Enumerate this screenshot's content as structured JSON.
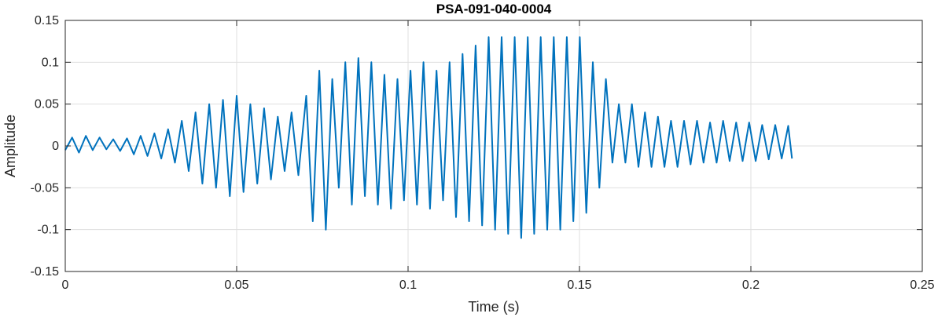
{
  "chart_data": {
    "type": "line",
    "title": "PSA-091-040-0004",
    "xlabel": "Time (s)",
    "ylabel": "Amplitude",
    "xlim": [
      0,
      0.25
    ],
    "ylim": [
      -0.15,
      0.15
    ],
    "xticks": [
      0,
      0.05,
      0.1,
      0.15,
      0.2,
      0.25
    ],
    "xtick_labels": [
      "0",
      "0.05",
      "0.1",
      "0.15",
      "0.2",
      "0.25"
    ],
    "yticks": [
      -0.15,
      -0.1,
      -0.05,
      0,
      0.05,
      0.1,
      0.15
    ],
    "ytick_labels": [
      "-0.15",
      "-0.1",
      "-0.05",
      "0",
      "0.05",
      "0.1",
      "0.15"
    ],
    "grid": true,
    "line_color": "#0072BD",
    "series": [
      {
        "x": [
          0,
          0.002,
          0.004,
          0.006,
          0.008,
          0.01,
          0.012,
          0.014,
          0.016,
          0.018,
          0.02,
          0.022,
          0.024,
          0.026,
          0.028,
          0.03,
          0.032,
          0.034,
          0.036,
          0.038,
          0.04,
          0.042,
          0.044,
          0.046,
          0.048,
          0.05,
          0.052,
          0.054,
          0.056,
          0.058,
          0.06,
          0.062,
          0.064,
          0.066,
          0.068,
          0.0703,
          0.0722,
          0.0741,
          0.076,
          0.0779,
          0.0798,
          0.0817,
          0.0836,
          0.0855,
          0.0874,
          0.0893,
          0.0912,
          0.0931,
          0.095,
          0.0969,
          0.0988,
          0.1007,
          0.1026,
          0.1045,
          0.1064,
          0.1083,
          0.1102,
          0.1121,
          0.114,
          0.1159,
          0.1178,
          0.1197,
          0.1216,
          0.1235,
          0.1254,
          0.1273,
          0.1292,
          0.1311,
          0.133,
          0.1349,
          0.1368,
          0.1387,
          0.1406,
          0.1425,
          0.1444,
          0.1463,
          0.1482,
          0.1501,
          0.152,
          0.1539,
          0.1558,
          0.1577,
          0.1596,
          0.1615,
          0.1634,
          0.1653,
          0.1672,
          0.1691,
          0.171,
          0.1729,
          0.1748,
          0.1767,
          0.1786,
          0.1805,
          0.1824,
          0.1843,
          0.1862,
          0.1881,
          0.19,
          0.1919,
          0.1938,
          0.1957,
          0.1976,
          0.1995,
          0.2014,
          0.2033,
          0.2052,
          0.2071,
          0.209,
          0.2109,
          0.212
        ],
        "y": [
          -0.005,
          0.01,
          -0.008,
          0.012,
          -0.005,
          0.01,
          -0.004,
          0.008,
          -0.006,
          0.009,
          -0.01,
          0.012,
          -0.012,
          0.015,
          -0.015,
          0.02,
          -0.02,
          0.03,
          -0.03,
          0.04,
          -0.045,
          0.05,
          -0.05,
          0.055,
          -0.06,
          0.06,
          -0.055,
          0.05,
          -0.045,
          0.045,
          -0.04,
          0.035,
          -0.03,
          0.04,
          -0.035,
          0.06,
          -0.09,
          0.09,
          -0.1,
          0.08,
          -0.05,
          0.1,
          -0.07,
          0.105,
          -0.06,
          0.1,
          -0.07,
          0.085,
          -0.075,
          0.08,
          -0.065,
          0.09,
          -0.07,
          0.1,
          -0.075,
          0.09,
          -0.065,
          0.1,
          -0.085,
          0.11,
          -0.09,
          0.12,
          -0.095,
          0.13,
          -0.1,
          0.13,
          -0.105,
          0.13,
          -0.11,
          0.13,
          -0.105,
          0.13,
          -0.1,
          0.13,
          -0.1,
          0.13,
          -0.09,
          0.13,
          -0.08,
          0.1,
          -0.05,
          0.08,
          -0.02,
          0.05,
          -0.02,
          0.05,
          -0.025,
          0.04,
          -0.025,
          0.035,
          -0.025,
          0.03,
          -0.025,
          0.03,
          -0.022,
          0.03,
          -0.02,
          0.028,
          -0.02,
          0.03,
          -0.018,
          0.028,
          -0.018,
          0.028,
          -0.018,
          0.025,
          -0.016,
          0.025,
          -0.015,
          0.024,
          -0.015
        ]
      }
    ]
  }
}
